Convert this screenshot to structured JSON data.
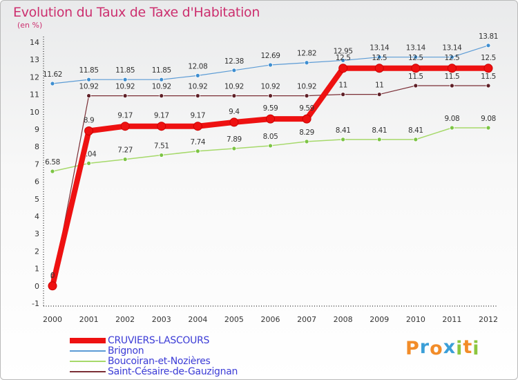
{
  "chart_data": {
    "type": "line",
    "title": "Evolution du Taux de Taxe d'Habitation",
    "subtitle": "(en %)",
    "x": [
      "2000",
      "2001",
      "2002",
      "2003",
      "2004",
      "2005",
      "2006",
      "2007",
      "2008",
      "2009",
      "2010",
      "2011",
      "2012"
    ],
    "yticks": [
      "-1",
      "0",
      "1",
      "2",
      "3",
      "4",
      "5",
      "6",
      "7",
      "8",
      "9",
      "10",
      "11",
      "12",
      "13",
      "14"
    ],
    "ylim": [
      -1,
      14
    ],
    "grid": false,
    "legend_position": "bottom-left",
    "series": [
      {
        "name": "Brignon",
        "color": "#5b9bd5",
        "point_color": "#3e8ed0",
        "width": 1.2,
        "radius": 3,
        "values": [
          11.62,
          11.85,
          11.85,
          11.85,
          12.08,
          12.38,
          12.69,
          12.82,
          12.95,
          13.14,
          13.14,
          13.14,
          13.81
        ],
        "labels": [
          "11.62",
          "11.85",
          "11.85",
          "11.85",
          "12.08",
          "12.38",
          "12.69",
          "12.82",
          "12.95",
          "13.14",
          "13.14",
          "13.14",
          "13.81"
        ],
        "label_dy": -10
      },
      {
        "name": "Boucoiran-et-Nozières",
        "color": "#a6d96a",
        "point_color": "#7cc444",
        "width": 1.5,
        "radius": 3,
        "values": [
          6.58,
          7.04,
          7.27,
          7.51,
          7.74,
          7.89,
          8.05,
          8.29,
          8.41,
          8.41,
          8.41,
          9.08,
          9.08
        ],
        "labels": [
          "6.58",
          "7.04",
          "7.27",
          "7.51",
          "7.74",
          "7.89",
          "8.05",
          "8.29",
          "8.41",
          "8.41",
          "8.41",
          "9.08",
          "9.08"
        ],
        "label_dy": -10
      },
      {
        "name": "Saint-Césaire-de-Gauzignan",
        "color": "#7a2e35",
        "point_color": "#5e1f26",
        "width": 1.2,
        "radius": 3,
        "values": [
          0,
          10.92,
          10.92,
          10.92,
          10.92,
          10.92,
          10.92,
          10.92,
          11,
          11,
          11.5,
          11.5,
          11.5
        ],
        "labels": [
          "0",
          "10.92",
          "10.92",
          "10.92",
          "10.92",
          "10.92",
          "10.92",
          "10.92",
          "11",
          "11",
          "11.5",
          "11.5",
          "11.5"
        ],
        "label_dy": -10
      },
      {
        "name": "CRUVIERS-LASCOURS",
        "color": "#ee1111",
        "point_color": "#ee1111",
        "width": 8,
        "radius": 6,
        "values": [
          0,
          8.9,
          9.17,
          9.17,
          9.17,
          9.4,
          9.59,
          9.59,
          12.5,
          12.5,
          12.5,
          12.5,
          12.5
        ],
        "labels": [
          "0",
          "8.9",
          "9.17",
          "9.17",
          "9.17",
          "9.4",
          "9.59",
          "9.59",
          "12.5",
          "12.5",
          "12.5",
          "12.5",
          "12.5"
        ],
        "label_dy": -12
      }
    ],
    "legend_order": [
      "CRUVIERS-LASCOURS",
      "Brignon",
      "Boucoiran-et-Nozières",
      "Saint-Césaire-de-Gauzignan"
    ]
  },
  "brand": {
    "letters": [
      "P",
      "r",
      "o",
      "x",
      "i",
      "t",
      "i"
    ],
    "colors": [
      "#f28c28",
      "#3b9fd8",
      "#f28c28",
      "#3b9fd8",
      "#8cc63f",
      "#f28c28",
      "#8cc63f"
    ]
  }
}
